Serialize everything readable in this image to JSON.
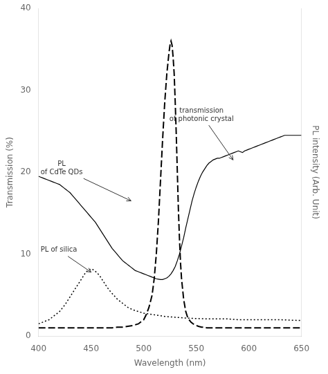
{
  "chart_data": {
    "type": "line",
    "xlabel": "Wavelength (nm)",
    "ylabel": "Transmission (%)",
    "y2label": "PL intensity (Arb. Unit)",
    "xlim": [
      400,
      650
    ],
    "ylim": [
      0,
      40
    ],
    "xticks": [
      400,
      450,
      500,
      550,
      600,
      650
    ],
    "yticks": [
      0,
      10,
      20,
      30,
      40
    ],
    "grid": false,
    "series": [
      {
        "color": "black",
        "line_style": "solid",
        "x": [
          400,
          402,
          404,
          406,
          408,
          410,
          412,
          414,
          416,
          418,
          420,
          422,
          424,
          426,
          428,
          430,
          432,
          434,
          436,
          438,
          440,
          442,
          444,
          446,
          448,
          450,
          452,
          454,
          456,
          458,
          460,
          462,
          464,
          466,
          468,
          470,
          472,
          474,
          476,
          478,
          480,
          482,
          484,
          486,
          488,
          490,
          492,
          494,
          496,
          498,
          500,
          502,
          504,
          506,
          508,
          510,
          512,
          514,
          516,
          518,
          520,
          522,
          524,
          526,
          528,
          530,
          532,
          534,
          536,
          538,
          540,
          542,
          544,
          546,
          548,
          550,
          552,
          554,
          556,
          558,
          560,
          562,
          564,
          566,
          568,
          570,
          572,
          574,
          576,
          578,
          580,
          582,
          584,
          586,
          588,
          590,
          592,
          594,
          596,
          598,
          600,
          602,
          604,
          606,
          608,
          610,
          612,
          614,
          616,
          618,
          620,
          622,
          624,
          626,
          628,
          630,
          632,
          634,
          636,
          638,
          640,
          642,
          644,
          646,
          648,
          650
        ],
        "values": [
          19.5,
          19.4,
          19.3,
          19.2,
          19.1,
          19.0,
          18.9,
          18.8,
          18.7,
          18.6,
          18.5,
          18.3,
          18.1,
          17.9,
          17.7,
          17.5,
          17.2,
          16.9,
          16.6,
          16.3,
          16.0,
          15.7,
          15.4,
          15.1,
          14.8,
          14.5,
          14.2,
          13.9,
          13.5,
          13.1,
          12.7,
          12.3,
          11.9,
          11.5,
          11.1,
          10.7,
          10.4,
          10.1,
          9.8,
          9.5,
          9.2,
          9.0,
          8.8,
          8.6,
          8.4,
          8.2,
          8.0,
          7.9,
          7.8,
          7.7,
          7.6,
          7.5,
          7.4,
          7.3,
          7.2,
          7.1,
          7.0,
          6.95,
          6.9,
          6.9,
          7.0,
          7.1,
          7.3,
          7.6,
          8.0,
          8.5,
          9.2,
          10.0,
          11.0,
          12.0,
          13.2,
          14.3,
          15.4,
          16.5,
          17.4,
          18.2,
          18.9,
          19.5,
          20.0,
          20.4,
          20.8,
          21.1,
          21.3,
          21.5,
          21.6,
          21.7,
          21.7,
          21.8,
          21.9,
          22.0,
          22.1,
          22.2,
          22.3,
          22.4,
          22.5,
          22.6,
          22.5,
          22.4,
          22.6,
          22.7,
          22.8,
          22.9,
          23.0,
          23.1,
          23.2,
          23.3,
          23.4,
          23.5,
          23.6,
          23.7,
          23.8,
          23.9,
          24.0,
          24.1,
          24.2,
          24.3,
          24.4,
          24.5,
          24.5,
          24.5,
          24.5,
          24.5,
          24.5,
          24.5,
          24.5,
          24.5
        ]
      },
      {
        "color": "black",
        "line_style": "dashed",
        "x": [
          400,
          410,
          420,
          430,
          440,
          450,
          460,
          470,
          475,
          480,
          485,
          490,
          495,
          497,
          500,
          502,
          505,
          508,
          510,
          512,
          514,
          516,
          518,
          520,
          522,
          524,
          525,
          526,
          527,
          528,
          529,
          530,
          531,
          532,
          533,
          534,
          535,
          536,
          538,
          540,
          542,
          545,
          548,
          550,
          552,
          555,
          558,
          560,
          565,
          570,
          575,
          580,
          590,
          600,
          610,
          620,
          630,
          640,
          650
        ],
        "values": [
          1.0,
          1.0,
          1.0,
          1.0,
          1.0,
          1.0,
          1.0,
          1.0,
          1.1,
          1.1,
          1.2,
          1.3,
          1.5,
          1.7,
          2.0,
          2.5,
          3.5,
          5.0,
          7.0,
          10.0,
          14.0,
          19.0,
          24.0,
          28.5,
          32.0,
          34.5,
          35.5,
          36.0,
          35.5,
          34.0,
          32.0,
          28.5,
          24.5,
          20.0,
          15.5,
          12.0,
          9.0,
          7.0,
          4.5,
          3.0,
          2.2,
          1.7,
          1.4,
          1.3,
          1.2,
          1.1,
          1.1,
          1.0,
          1.0,
          1.0,
          1.0,
          1.0,
          1.0,
          1.0,
          1.0,
          1.0,
          1.0,
          1.0,
          1.0
        ]
      },
      {
        "color": "black",
        "line_style": "dotted",
        "x": [
          400,
          410,
          420,
          425,
          430,
          435,
          440,
          442,
          445,
          447,
          450,
          452,
          455,
          458,
          460,
          462,
          465,
          468,
          470,
          475,
          480,
          485,
          490,
          495,
          500,
          505,
          510,
          515,
          520,
          525,
          530,
          540,
          550,
          560,
          570,
          580,
          590,
          600,
          610,
          620,
          630,
          640,
          650
        ],
        "values": [
          1.5,
          2.0,
          3.0,
          3.8,
          4.8,
          5.8,
          6.8,
          7.2,
          7.8,
          8.0,
          8.2,
          8.1,
          7.8,
          7.4,
          7.0,
          6.6,
          6.0,
          5.5,
          5.2,
          4.5,
          4.0,
          3.5,
          3.2,
          3.0,
          2.8,
          2.7,
          2.6,
          2.5,
          2.4,
          2.35,
          2.3,
          2.2,
          2.15,
          2.1,
          2.1,
          2.1,
          2.0,
          2.0,
          2.0,
          2.0,
          2.0,
          1.95,
          1.9
        ]
      }
    ],
    "annotations": [
      {
        "text": "transmission\nof photonic crystal",
        "xy": [
          585,
          21.5
        ],
        "xytext": [
          555,
          27.0
        ]
      },
      {
        "text": "PL\nof CdTe QDs",
        "xy": [
          488,
          16.5
        ],
        "xytext": [
          418,
          20.5
        ]
      },
      {
        "text": "PL of silica",
        "xy": [
          450,
          7.8
        ],
        "xytext": [
          415,
          10.5
        ]
      }
    ]
  }
}
